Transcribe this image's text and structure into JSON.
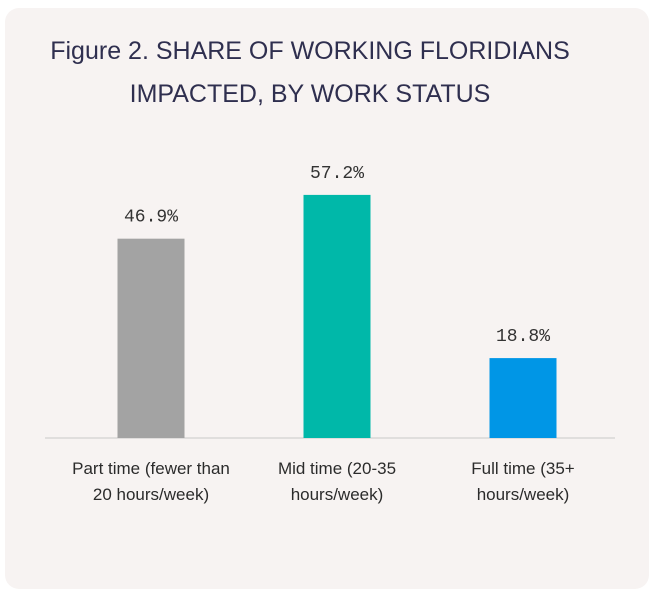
{
  "chart_data": {
    "type": "bar",
    "title": "Figure 2. SHARE OF WORKING FLORIDIANS IMPACTED, BY WORK STATUS",
    "categories": [
      "Part time (fewer than 20 hours/week)",
      "Mid time (20-35 hours/week)",
      "Full time (35+ hours/week)"
    ],
    "values": [
      46.9,
      57.2,
      18.8
    ],
    "value_labels": [
      "46.9%",
      "57.2%",
      "18.8%"
    ],
    "colors": [
      "#a3a3a3",
      "#00b8a9",
      "#0096e6"
    ]
  }
}
